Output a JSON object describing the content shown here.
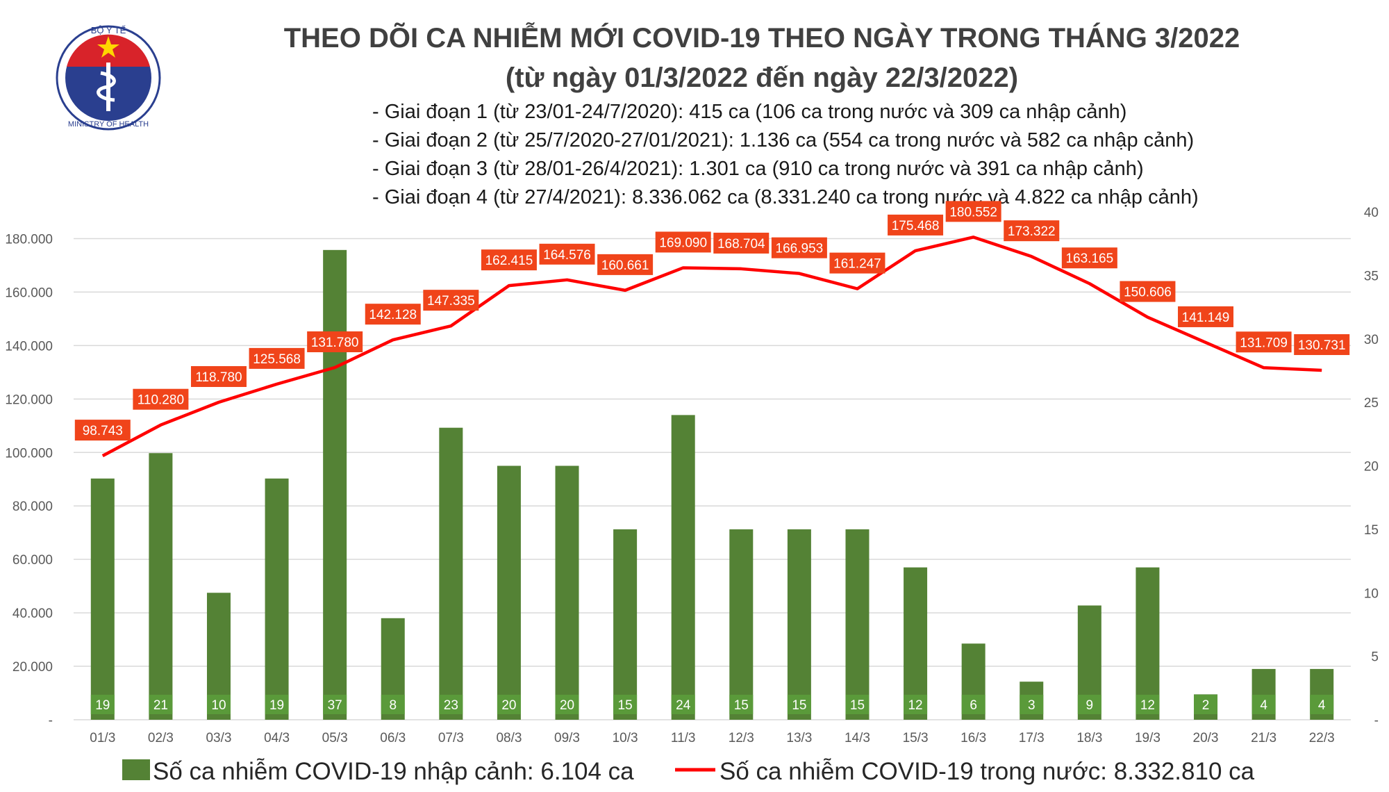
{
  "logo": {
    "top_text": "BỘ Y TẾ",
    "bottom_text": "MINISTRY OF HEALTH"
  },
  "header": {
    "title": "THEO DÕI CA NHIỄM MỚI COVID-19 THEO NGÀY TRONG THÁNG 3/2022",
    "subtitle": "(từ ngày 01/3/2022 đến ngày 22/3/2022)",
    "notes": [
      "- Giai đoạn 1 (từ 23/01-24/7/2020): 415 ca (106 ca trong nước và 309 ca nhập cảnh)",
      "- Giai đoạn 2 (từ 25/7/2020-27/01/2021): 1.136 ca (554 ca trong nước và 582 ca nhập cảnh)",
      "- Giai đoạn 3 (từ 28/01-26/4/2021): 1.301 ca (910 ca trong nước và 391 ca nhập cảnh)",
      "- Giai đoạn 4 (từ 27/4/2021): 8.336.062 ca (8.331.240 ca trong nước và 4.822 ca nhập cảnh)"
    ]
  },
  "chart_data": {
    "type": "bar+line",
    "categories": [
      "01/3",
      "02/3",
      "03/3",
      "04/3",
      "05/3",
      "06/3",
      "07/3",
      "08/3",
      "09/3",
      "10/3",
      "11/3",
      "12/3",
      "13/3",
      "14/3",
      "15/3",
      "16/3",
      "17/3",
      "18/3",
      "19/3",
      "20/3",
      "21/3",
      "22/3"
    ],
    "series": [
      {
        "name": "Số ca nhiễm COVID-19 nhập cảnh: 6.104 ca",
        "type": "bar",
        "axis": "right",
        "color": "#548235",
        "values": [
          19,
          21,
          10,
          19,
          37,
          8,
          23,
          20,
          20,
          15,
          24,
          15,
          15,
          15,
          12,
          6,
          3,
          9,
          12,
          2,
          4,
          4
        ]
      },
      {
        "name": "Số ca nhiễm COVID-19 trong nước: 8.332.810 ca",
        "type": "line",
        "axis": "left",
        "color": "#ff0000",
        "values": [
          98743,
          110280,
          118780,
          125568,
          131780,
          142128,
          147335,
          162415,
          164576,
          160661,
          169090,
          168704,
          166953,
          161247,
          175468,
          180552,
          173322,
          163165,
          150606,
          141149,
          131709,
          130731
        ]
      }
    ],
    "left_axis": {
      "range": [
        0,
        190000
      ],
      "ticks": [
        "-",
        "20.000",
        "40.000",
        "60.000",
        "80.000",
        "100.000",
        "120.000",
        "140.000",
        "160.000",
        "180.000"
      ]
    },
    "right_axis": {
      "range": [
        0,
        40
      ],
      "ticks": [
        "-",
        "5",
        "10",
        "15",
        "20",
        "25",
        "30",
        "35",
        "40"
      ]
    },
    "grid": true,
    "legend_placement": "bottom",
    "line_label_color": "#f0441a",
    "bar_label_color": "#5a9a3a"
  }
}
